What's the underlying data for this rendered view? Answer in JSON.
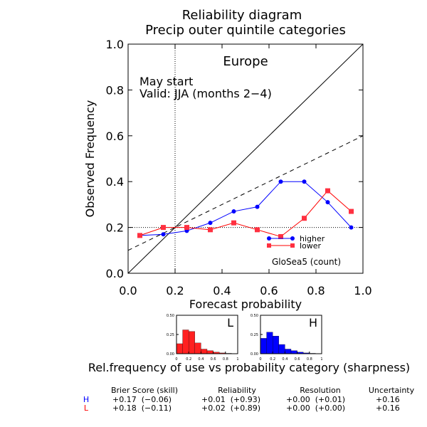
{
  "chart_data": [
    {
      "type": "line",
      "title": "Reliability diagram",
      "subtitle": "Precip outer quintile categories",
      "region": "Europe",
      "start_label": "May start",
      "valid_label": "Valid: JJA (months 2−4)",
      "xlabel": "Forecast probability",
      "ylabel": "Observed Frequency",
      "xlim": [
        0.0,
        1.0
      ],
      "ylim": [
        0.0,
        1.0
      ],
      "xticks": [
        "0.0",
        "0.2",
        "0.4",
        "0.6",
        "0.8",
        "1.0"
      ],
      "yticks": [
        "0.0",
        "0.2",
        "0.4",
        "0.6",
        "0.8",
        "1.0"
      ],
      "reference_x": 0.2,
      "reference_y": 0.2,
      "model_label": "GloSea5 (count)",
      "x": [
        0.05,
        0.15,
        0.25,
        0.35,
        0.45,
        0.55,
        0.65,
        0.75,
        0.85,
        0.95
      ],
      "series": [
        {
          "name": "higher",
          "color": "#0000ff",
          "marker": "circle",
          "values": [
            0.165,
            0.17,
            0.185,
            0.22,
            0.27,
            0.29,
            0.4,
            0.4,
            0.31,
            0.2
          ]
        },
        {
          "name": "lower",
          "color": "#ff0000",
          "marker": "square",
          "values": [
            0.165,
            0.2,
            0.2,
            0.19,
            0.22,
            0.19,
            0.16,
            0.24,
            0.36,
            0.27
          ]
        }
      ]
    },
    {
      "type": "bar",
      "label": "L",
      "color": "#ff2020",
      "ylim": [
        0,
        0.5
      ],
      "yticks": [
        "0.50",
        "0.25",
        "0.00"
      ],
      "xticks": [
        "0",
        "0.2",
        "0.4",
        "0.6",
        "0.8",
        "1"
      ],
      "values": [
        0.13,
        0.31,
        0.29,
        0.14,
        0.06,
        0.04,
        0.02,
        0.01,
        0.005,
        0.002
      ]
    },
    {
      "type": "bar",
      "label": "H",
      "color": "#0000ff",
      "ylim": [
        0,
        0.5
      ],
      "yticks": [
        "0.50",
        "0.25",
        "0.00"
      ],
      "xticks": [
        "0",
        "0.2",
        "0.4",
        "0.6",
        "0.8",
        "1"
      ],
      "values": [
        0.2,
        0.28,
        0.23,
        0.12,
        0.06,
        0.04,
        0.02,
        0.01,
        0.005,
        0.002
      ]
    }
  ],
  "sharpness_caption": "Rel.frequency of use vs probability category (sharpness)",
  "scores": {
    "headers": [
      "Brier Score (skill)",
      "Reliability",
      "Resolution",
      "Uncertainty"
    ],
    "rows": [
      {
        "label": "H",
        "color": "#0000ff",
        "values": [
          "+0.17  (−0.06)",
          "+0.01  (+0.93)",
          "+0.00  (+0.01)",
          "+0.16"
        ]
      },
      {
        "label": "L",
        "color": "#ff0000",
        "values": [
          "+0.18  (−0.11)",
          "+0.02  (+0.89)",
          "+0.00  (+0.00)",
          "+0.16"
        ]
      }
    ]
  }
}
